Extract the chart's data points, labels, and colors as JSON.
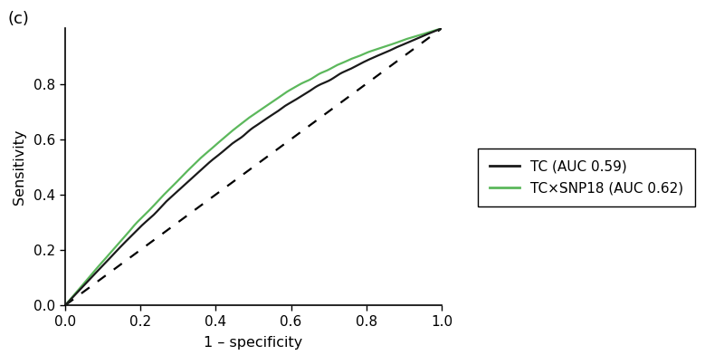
{
  "title_label": "(c)",
  "xlabel": "1 – specificity",
  "ylabel": "Sensitivity",
  "xlim": [
    0.0,
    1.0
  ],
  "ylim": [
    0.0,
    1.0
  ],
  "xticks": [
    0.0,
    0.2,
    0.4,
    0.6,
    0.8,
    1.0
  ],
  "yticks": [
    0.0,
    0.2,
    0.4,
    0.6,
    0.8
  ],
  "tc_color": "#1a1a1a",
  "snp_color": "#5cb85c",
  "tc_label": "TC (AUC 0.59)",
  "snp_label": "TC×SNP18 (AUC 0.62)",
  "tc_auc": 0.59,
  "snp_auc": 0.62,
  "line_width": 1.6,
  "figsize": [
    8.0,
    3.92
  ],
  "dpi": 100,
  "background_color": "#ffffff"
}
